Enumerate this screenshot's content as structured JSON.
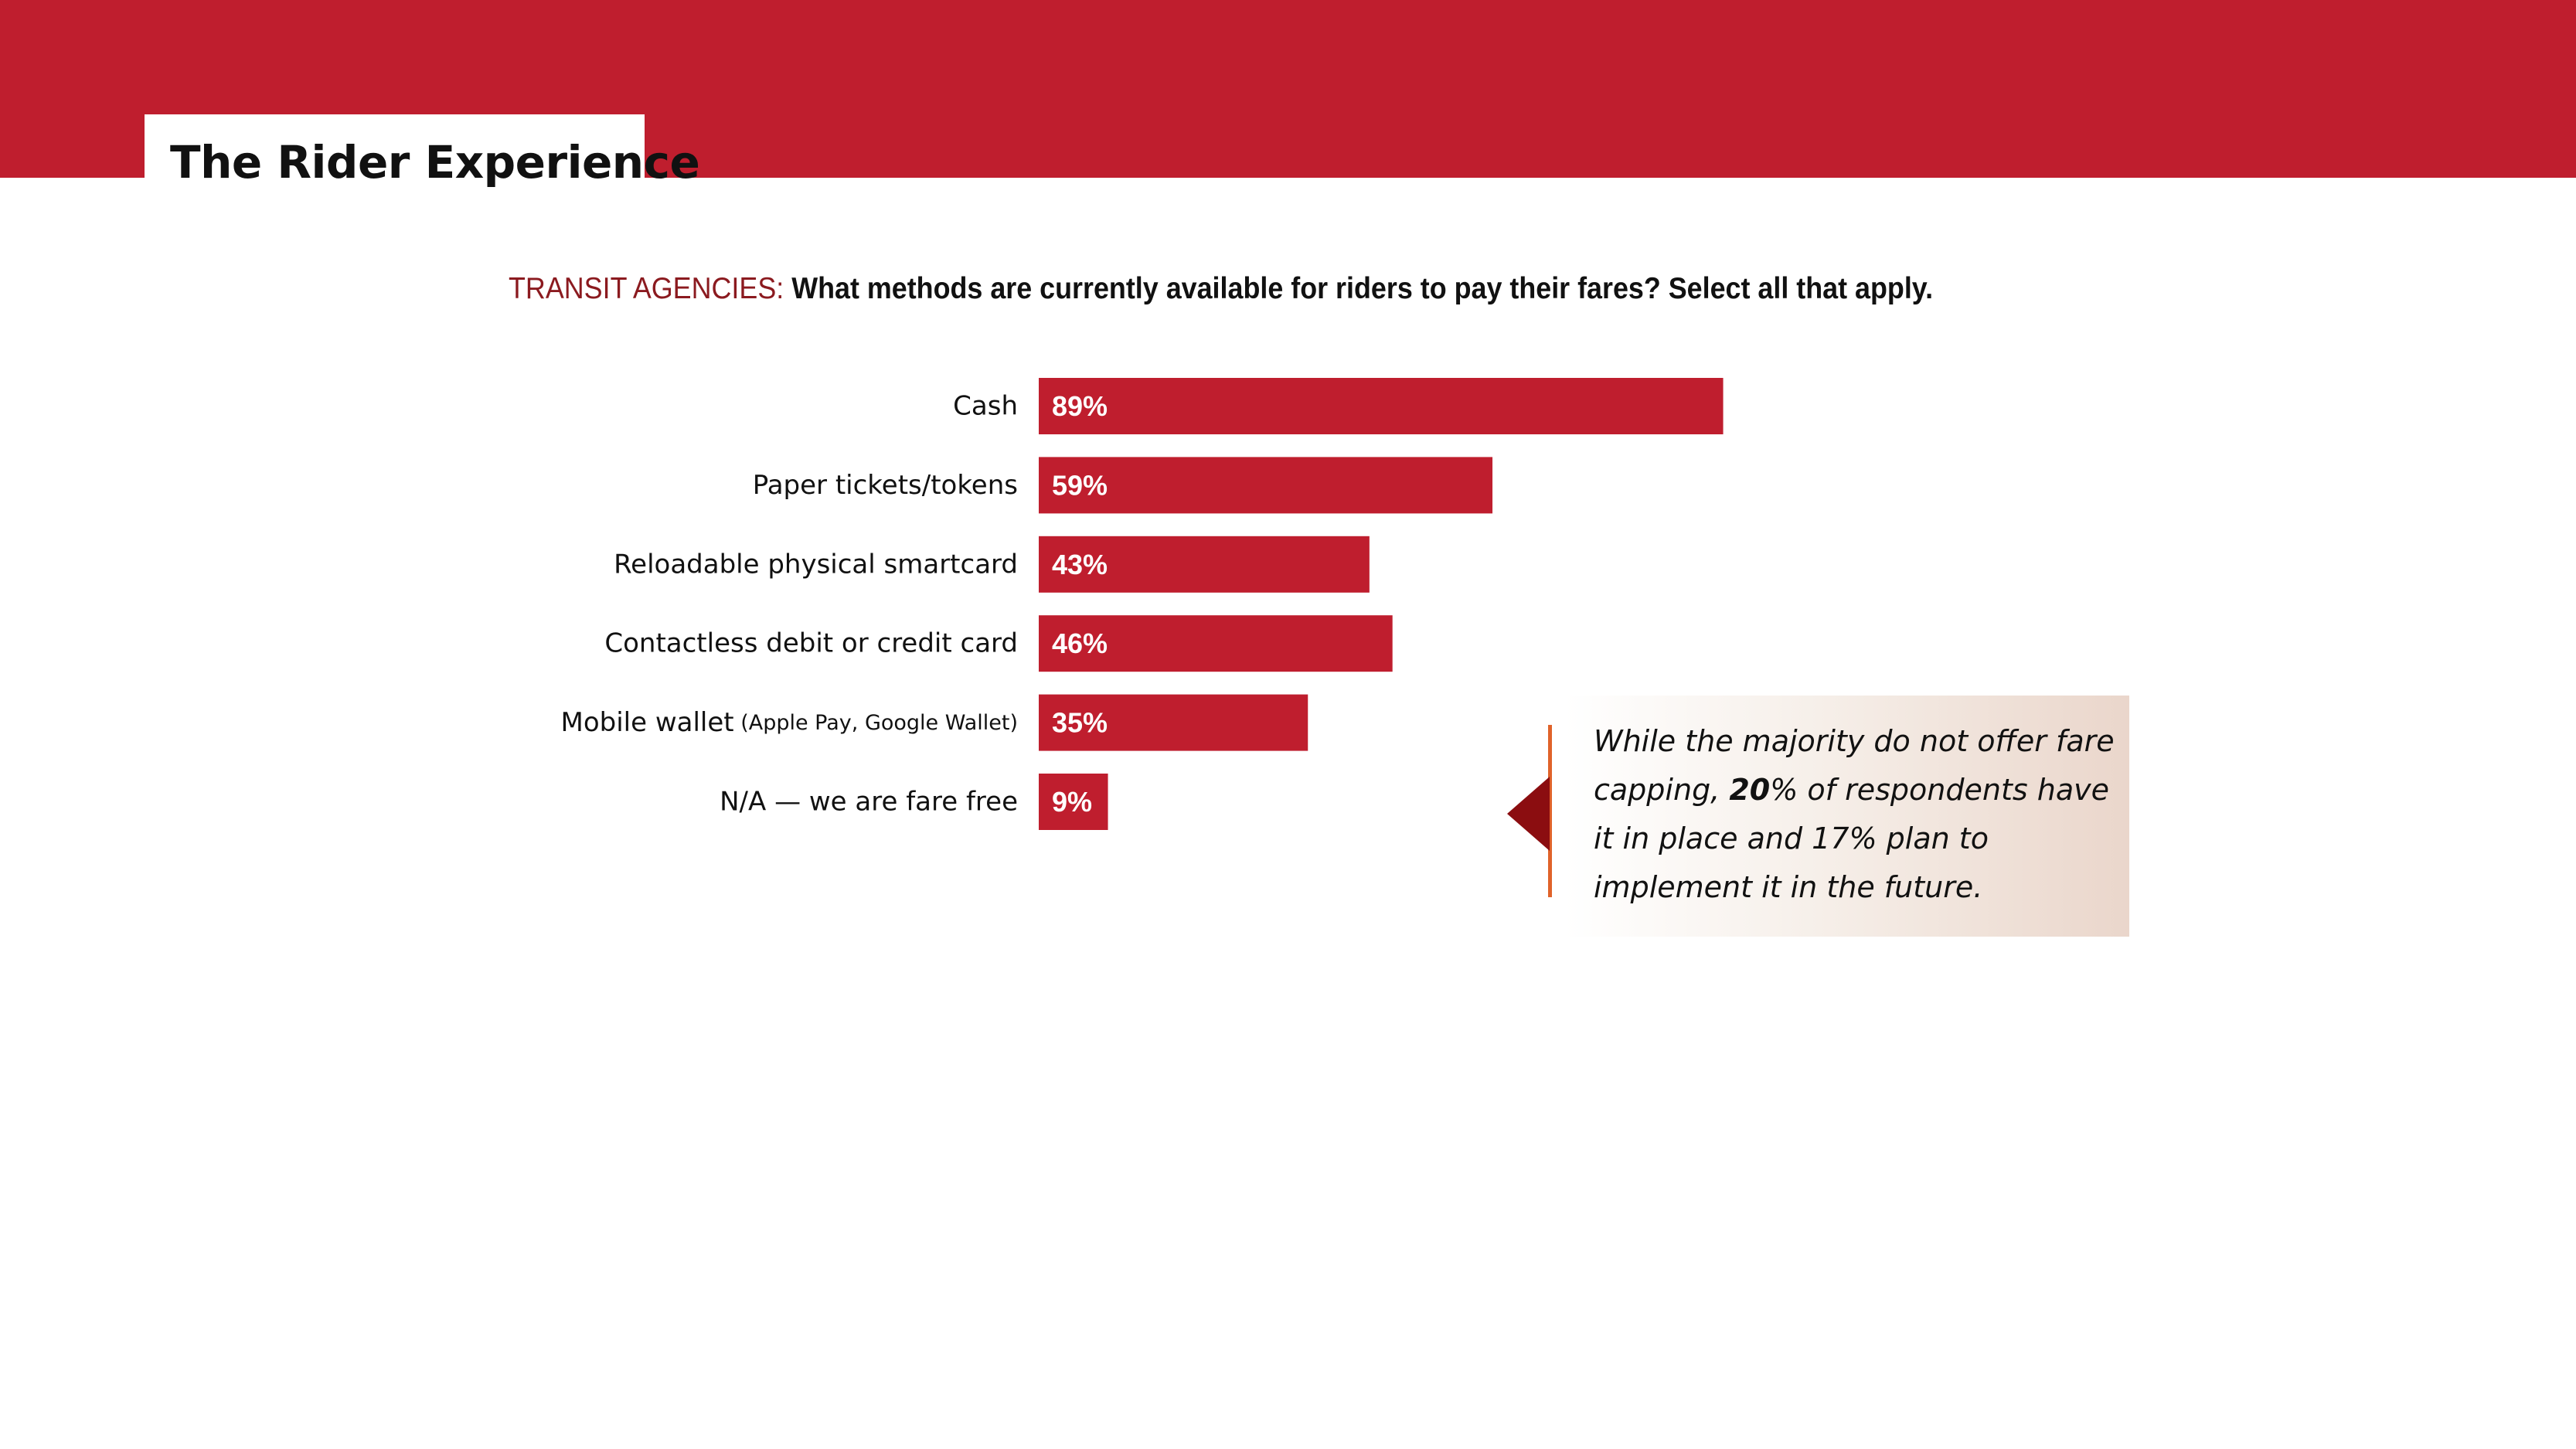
{
  "header": {
    "title": "The Rider Experience"
  },
  "question": {
    "prefix": "TRANSIT AGENCIES:",
    "text": "What methods are currently available for riders to pay their fares? Select all that apply."
  },
  "chart_data": {
    "type": "bar",
    "orientation": "horizontal",
    "categories": [
      "Cash",
      "Paper tickets/tokens",
      "Reloadable physical smartcard",
      "Contactless debit or credit card",
      "Mobile wallet",
      "N/A — we are fare free"
    ],
    "category_notes": [
      "",
      "",
      "",
      "",
      "(Apple Pay, Google Wallet)",
      ""
    ],
    "values": [
      89,
      59,
      43,
      46,
      35,
      9
    ],
    "value_labels": [
      "89%",
      "59%",
      "43%",
      "46%",
      "35%",
      "9%"
    ],
    "unit": "%",
    "xlim": [
      0,
      100
    ],
    "grid": false,
    "legend": "none",
    "bar_color": "#bf1e2e"
  },
  "callout": {
    "text_part1": "While the majority do not offer fare capping, ",
    "text_bold": "20",
    "text_part2": "% of respondents have it in place and 17% plan to implement it in the future."
  },
  "colors": {
    "brand_red": "#bf1e2e",
    "accent_orange": "#e0632a",
    "dark_red": "#8b0d10"
  }
}
